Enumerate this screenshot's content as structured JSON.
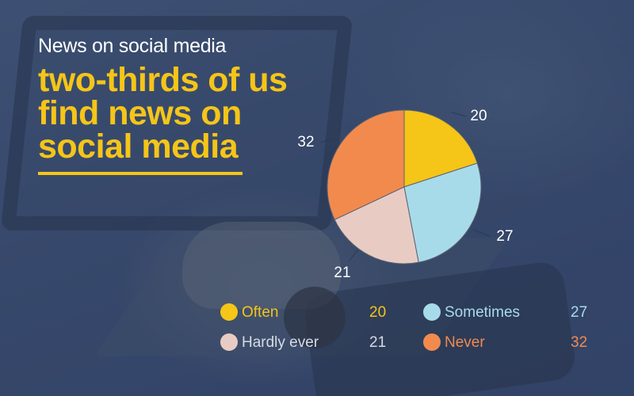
{
  "subtitle": "News on social media",
  "title": "two-thirds of us\nfind news on\nsocial media",
  "colors": {
    "accent": "#f5c518",
    "text_light": "#ffffff",
    "muted": "#c9d1dd"
  },
  "chart_data": {
    "type": "pie",
    "title": "",
    "slices": [
      {
        "label": "Often",
        "value": 20,
        "color": "#f5c518"
      },
      {
        "label": "Sometimes",
        "value": 27,
        "color": "#a8dbea"
      },
      {
        "label": "Hardly ever",
        "value": 21,
        "color": "#e8ccc4"
      },
      {
        "label": "Never",
        "value": 32,
        "color": "#f28a4e"
      }
    ],
    "start_angle_deg": 0,
    "direction": "clockwise",
    "data_labels": true,
    "legend_placement": "bottom"
  }
}
